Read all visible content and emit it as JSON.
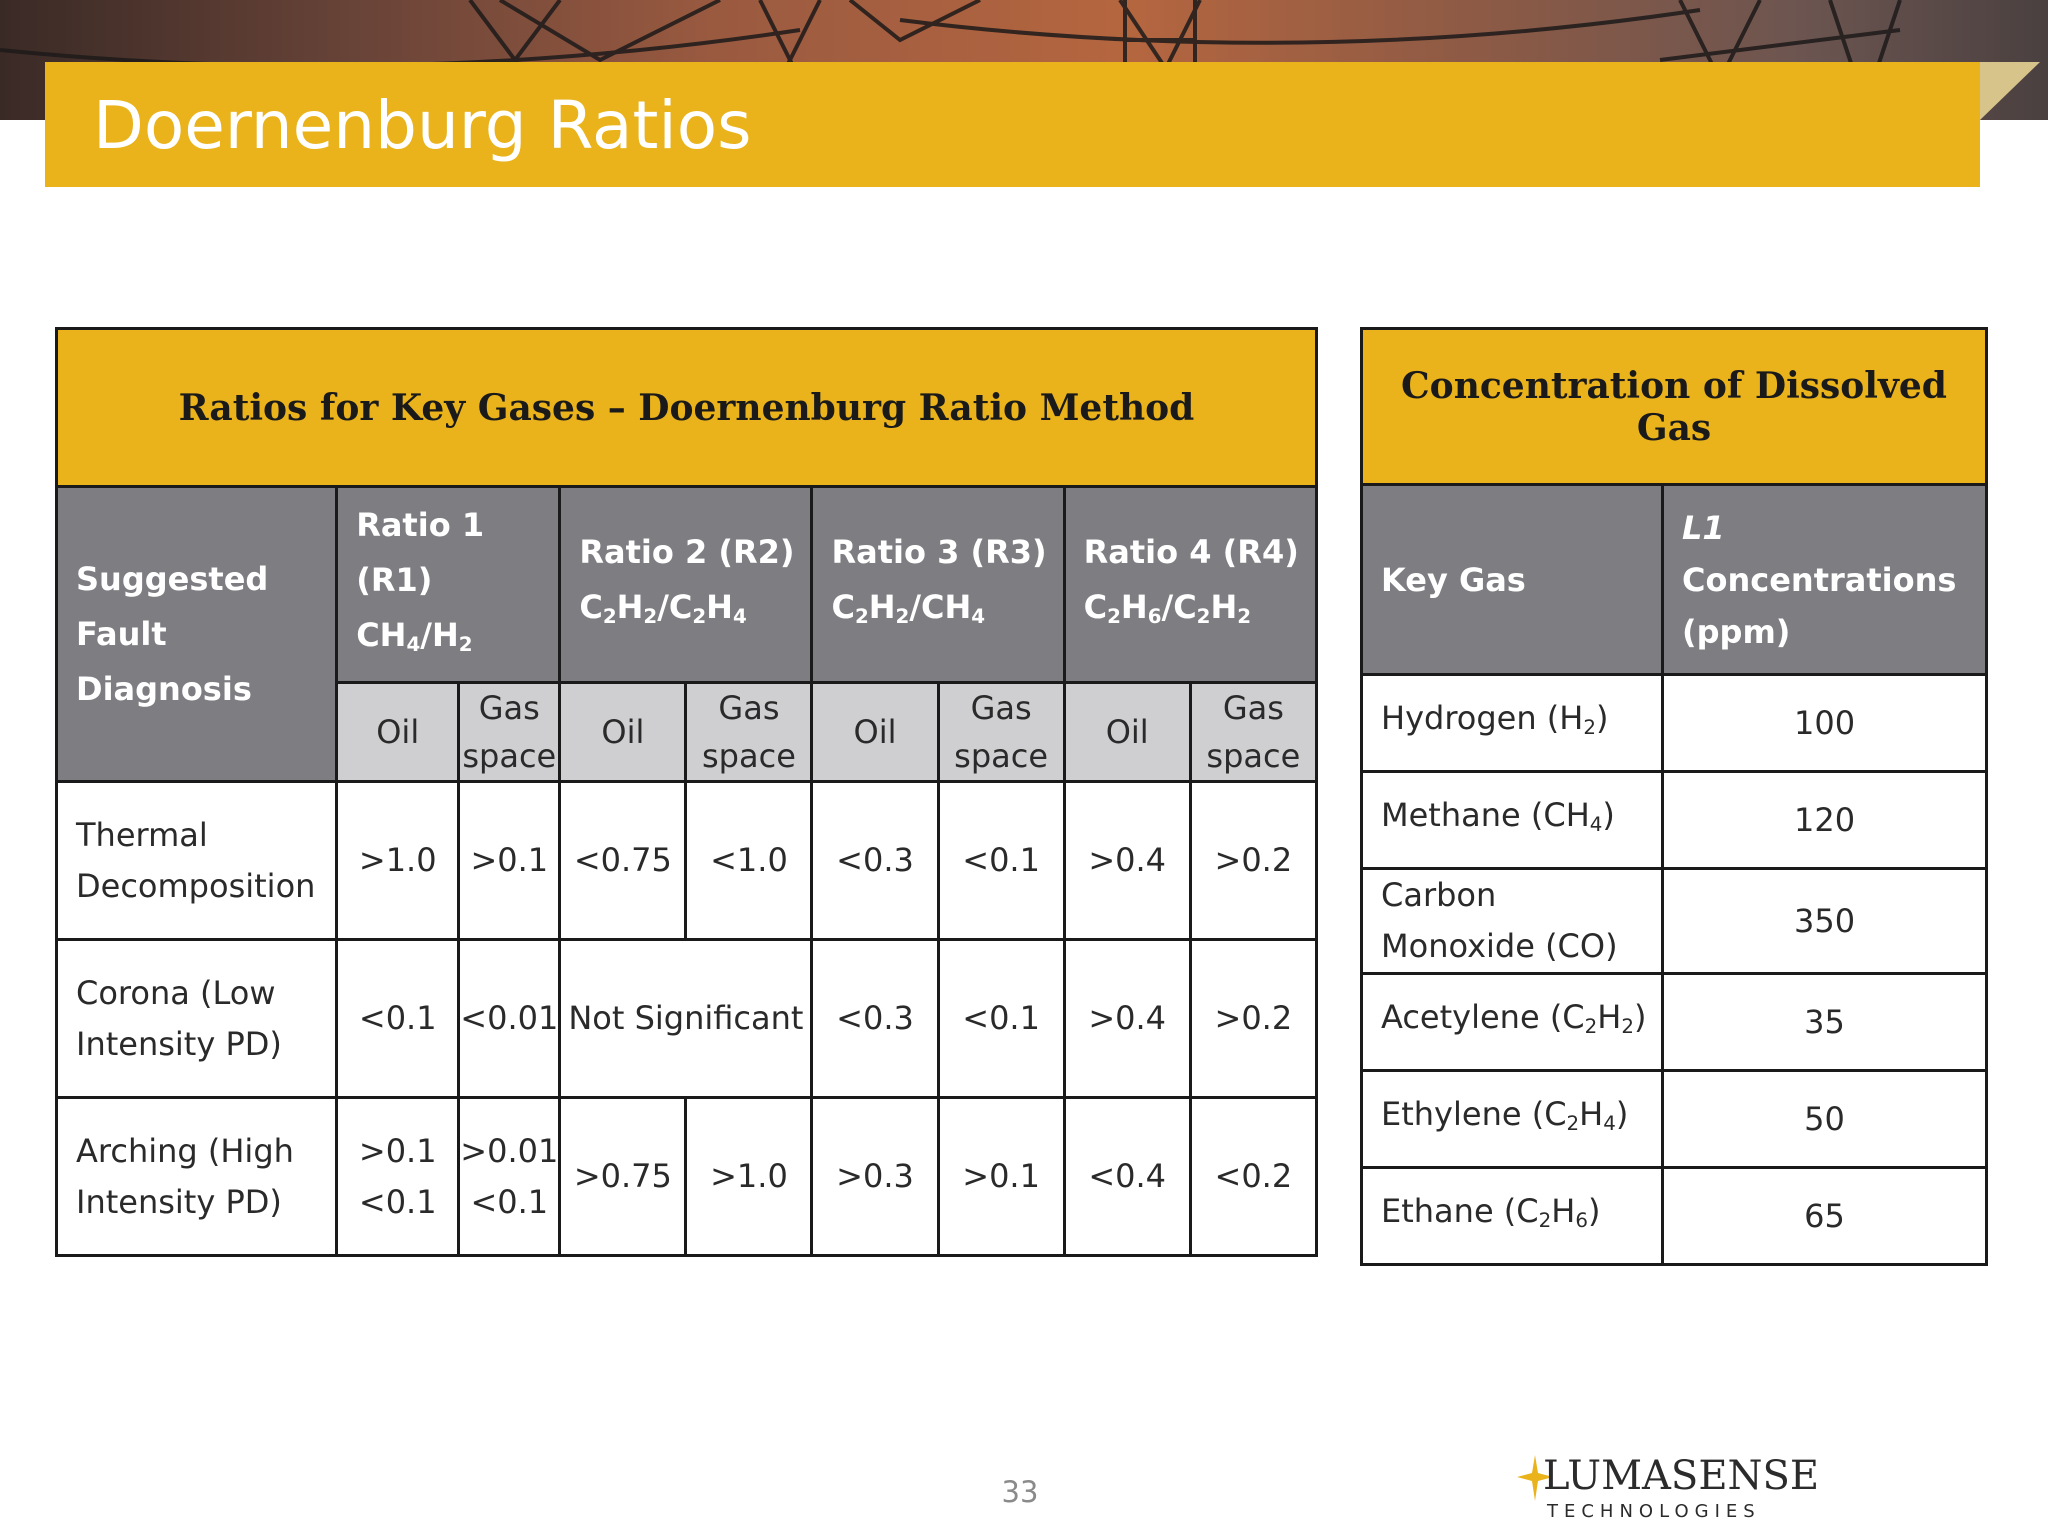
{
  "slide": {
    "title": "Doernenburg Ratios",
    "page_number": "33"
  },
  "logo": {
    "name": "LumaSense",
    "main": "LUMASENSE",
    "sub": "TECHNOLOGIES"
  },
  "main_table": {
    "title": "Ratios for Key Gases – Doernenburg Ratio Method",
    "diagnosis_header": [
      "Suggested",
      "Fault",
      "Diagnosis"
    ],
    "ratio_headers": [
      {
        "label": "Ratio 1",
        "abbr": "(R1)",
        "num": "CH",
        "num_sub": "4",
        "den": "H",
        "den_sub": "2"
      },
      {
        "label": "Ratio 2 (R2)",
        "num": "C",
        "num_sub": "2",
        "num2": "H",
        "num2_sub": "2",
        "den": "C",
        "den_sub": "2",
        "den2": "H",
        "den2_sub": "4"
      },
      {
        "label": "Ratio 3 (R3)",
        "num": "C",
        "num_sub": "2",
        "num2": "H",
        "num2_sub": "2",
        "den": "CH",
        "den_sub": "4"
      },
      {
        "label": "Ratio 4 (R4)",
        "num": "C",
        "num_sub": "2",
        "num2": "H",
        "num2_sub": "6",
        "den": "C",
        "den_sub": "2",
        "den2": "H",
        "den2_sub": "2"
      }
    ],
    "sub_headers": {
      "oil": "Oil",
      "gas_space_1": "Gas",
      "gas_space_2": "space"
    },
    "rows": [
      {
        "diagnosis": [
          "Thermal",
          "Decomposition"
        ],
        "r1_oil": ">1.0",
        "r1_gas": ">0.1",
        "r2_oil": "<0.75",
        "r2_gas": "<1.0",
        "r3_oil": "<0.3",
        "r3_gas": "<0.1",
        "r4_oil": ">0.4",
        "r4_gas": ">0.2"
      },
      {
        "diagnosis": [
          "Corona (Low",
          "Intensity PD)"
        ],
        "r1_oil": "<0.1",
        "r1_gas": "<0.01",
        "r2_merged": "Not Significant",
        "r3_oil": "<0.3",
        "r3_gas": "<0.1",
        "r4_oil": ">0.4",
        "r4_gas": ">0.2"
      },
      {
        "diagnosis": [
          "Arching (High",
          "Intensity PD)"
        ],
        "r1_oil": [
          ">0.1",
          "<0.1"
        ],
        "r1_gas": [
          ">0.01",
          "<0.1"
        ],
        "r2_oil": ">0.75",
        "r2_gas": ">1.0",
        "r3_oil": ">0.3",
        "r3_gas": ">0.1",
        "r4_oil": "<0.4",
        "r4_gas": "<0.2"
      }
    ]
  },
  "gas_table": {
    "title": "Concentration of Dissolved Gas",
    "col_key_gas": "Key Gas",
    "col_conc_prefix": "L1",
    "col_conc_1": " Concentrations",
    "col_conc_2": "(ppm)",
    "rows": [
      {
        "name": "Hydrogen (H",
        "sub": "2",
        "tail": ")",
        "value": "100"
      },
      {
        "name": "Methane (CH",
        "sub": "4",
        "tail": ")",
        "value": "120"
      },
      {
        "name": "Carbon",
        "name2": "Monoxide (CO)",
        "value": "350"
      },
      {
        "name": "Acetylene (C",
        "sub": "2",
        "mid": "H",
        "sub2": "2",
        "tail": ")",
        "value": "35"
      },
      {
        "name": "Ethylene (C",
        "sub": "2",
        "mid": "H",
        "sub2": "4",
        "tail": ")",
        "value": "50"
      },
      {
        "name": "Ethane (C",
        "sub": "2",
        "mid": "H",
        "sub2": "6",
        "tail": ")",
        "value": "65"
      }
    ]
  }
}
